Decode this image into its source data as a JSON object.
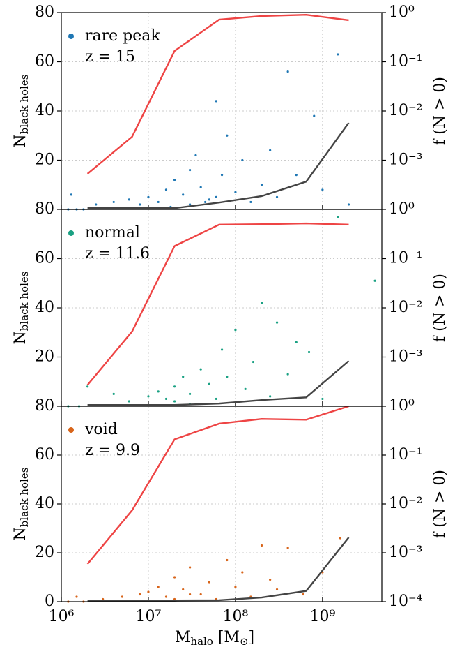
{
  "chart_data": [
    {
      "type": "scatter",
      "xscale": "log",
      "y2scale": "log",
      "grid": true,
      "legend": "upper left",
      "xlim": [
        1000000,
        4800000000
      ],
      "xticks": [
        1000000,
        10000000,
        100000000,
        1000000000
      ],
      "ylim": [
        0,
        80
      ],
      "yticks": [
        20,
        40,
        60,
        80
      ],
      "y2lim": [
        0.0001,
        1
      ],
      "y2ticks": [
        {
          "value": 0.001,
          "label": "10⁻³"
        },
        {
          "value": 0.01,
          "label": "10⁻²"
        },
        {
          "value": 0.1,
          "label": "10⁻¹"
        },
        {
          "value": 1,
          "label": "10⁰"
        }
      ],
      "ylabel": "N",
      "ylabel_sub": "black holes",
      "y2label": "f (N > 0)",
      "annotation": "z = 15",
      "series": [
        {
          "name": "rare peak",
          "color": "#1f77b4",
          "kind": "scatter",
          "x": [
            1200000,
            1500000,
            1800000,
            1300000,
            2500000,
            4000000,
            6000000,
            8000000,
            10000000,
            13000000,
            16000000,
            20000000,
            25000000,
            30000000,
            35000000,
            40000000,
            50000000,
            60000000,
            70000000,
            80000000,
            100000000,
            120000000,
            150000000,
            200000000,
            250000000,
            300000000,
            400000000,
            500000000,
            800000000,
            1000000000,
            1500000000,
            2000000000,
            30000000,
            18000000,
            45000000,
            60000000
          ],
          "values": [
            0,
            0,
            0,
            6,
            2,
            3,
            4,
            2,
            5,
            3,
            8,
            12,
            6,
            16,
            22,
            9,
            4,
            44,
            14,
            30,
            7,
            20,
            3,
            10,
            24,
            5,
            56,
            14,
            38,
            8,
            63,
            2,
            2,
            1,
            3,
            5
          ]
        },
        {
          "color": "#ee4444",
          "kind": "line",
          "axis": "y2",
          "x": [
            2000000,
            6500000,
            20000000,
            65000000,
            200000000,
            650000000,
            2000000000
          ],
          "values": [
            0.00053,
            0.003,
            0.166,
            0.72,
            0.85,
            0.9,
            0.7
          ]
        },
        {
          "color": "#444444",
          "kind": "line",
          "x": [
            2000000,
            6500000,
            20000000,
            65000000,
            200000000,
            650000000,
            2000000000
          ],
          "values": [
            0.5,
            0.5,
            0.5,
            2.8,
            5.4,
            11.3,
            35.2
          ]
        }
      ]
    },
    {
      "type": "scatter",
      "xscale": "log",
      "y2scale": "log",
      "grid": true,
      "legend": "upper left",
      "xlim": [
        1000000,
        4800000000
      ],
      "xticks": [
        1000000,
        10000000,
        100000000,
        1000000000
      ],
      "ylim": [
        0,
        80
      ],
      "yticks": [
        20,
        40,
        60,
        80
      ],
      "y2lim": [
        0.0001,
        1
      ],
      "y2ticks": [
        {
          "value": 0.001,
          "label": "10⁻³"
        },
        {
          "value": 0.01,
          "label": "10⁻²"
        },
        {
          "value": 0.1,
          "label": "10⁻¹"
        },
        {
          "value": 1,
          "label": "10⁰"
        }
      ],
      "ylabel": "N",
      "ylabel_sub": "black holes",
      "y2label": "f (N > 0)",
      "annotation": "z = 11.6",
      "series": [
        {
          "name": "normal",
          "color": "#1aa183",
          "kind": "scatter",
          "x": [
            1200000,
            1600000,
            2000000,
            4000000,
            6000000,
            10000000,
            13000000,
            16000000,
            20000000,
            25000000,
            30000000,
            40000000,
            50000000,
            60000000,
            70000000,
            80000000,
            100000000,
            130000000,
            160000000,
            200000000,
            250000000,
            300000000,
            400000000,
            500000000,
            700000000,
            1000000000,
            1500000000,
            4000000000,
            30000000,
            20000000
          ],
          "values": [
            0,
            0,
            8,
            5,
            2,
            4,
            6,
            3,
            8,
            12,
            5,
            15,
            9,
            3,
            23,
            12,
            31,
            7,
            18,
            42,
            4,
            34,
            13,
            26,
            22,
            3,
            77,
            51,
            1,
            2
          ]
        },
        {
          "color": "#ee4444",
          "kind": "line",
          "axis": "y2",
          "x": [
            2000000,
            6500000,
            20000000,
            65000000,
            200000000,
            650000000,
            2000000000
          ],
          "values": [
            0.00027,
            0.0033,
            0.18,
            0.49,
            0.5,
            0.52,
            0.49
          ]
        },
        {
          "color": "#444444",
          "kind": "line",
          "x": [
            2000000,
            6500000,
            20000000,
            65000000,
            200000000,
            650000000,
            2000000000
          ],
          "values": [
            0.5,
            0.5,
            0.5,
            1.1,
            2.5,
            3.6,
            18.4
          ]
        }
      ]
    },
    {
      "type": "scatter",
      "xscale": "log",
      "y2scale": "log",
      "grid": true,
      "legend": "upper left",
      "xlim": [
        1000000,
        4800000000
      ],
      "xticks": [
        {
          "value": 1000000,
          "label": "10⁶"
        },
        {
          "value": 10000000,
          "label": "10⁷"
        },
        {
          "value": 100000000,
          "label": "10⁸"
        },
        {
          "value": 1000000000,
          "label": "10⁹"
        }
      ],
      "ylim": [
        0,
        80
      ],
      "yticks": [
        0,
        20,
        40,
        60,
        80
      ],
      "y2lim": [
        0.0001,
        1
      ],
      "y2ticks": [
        {
          "value": 0.0001,
          "label": "10⁻⁴"
        },
        {
          "value": 0.001,
          "label": "10⁻³"
        },
        {
          "value": 0.01,
          "label": "10⁻²"
        },
        {
          "value": 0.1,
          "label": "10⁻¹"
        },
        {
          "value": 1,
          "label": "10⁰"
        }
      ],
      "ylabel": "N",
      "ylabel_sub": "black holes",
      "y2label": "f (N > 0)",
      "annotation": "z = 9.9",
      "xlabel": "M",
      "xlabel_sub": "halo",
      "xlabel_unit": " [M",
      "xlabel_unit_sub": "⊙",
      "xlabel_end": "]",
      "series": [
        {
          "name": "void",
          "color": "#d8651b",
          "kind": "scatter",
          "x": [
            1200000,
            1500000,
            1800000,
            3000000,
            5000000,
            8000000,
            10000000,
            13000000,
            16000000,
            20000000,
            25000000,
            30000000,
            40000000,
            50000000,
            60000000,
            80000000,
            100000000,
            120000000,
            150000000,
            200000000,
            250000000,
            300000000,
            400000000,
            600000000,
            1000000000,
            1600000000,
            20000000,
            30000000
          ],
          "values": [
            0,
            2,
            0,
            1,
            2,
            3,
            4,
            6,
            2,
            10,
            5,
            14,
            3,
            8,
            1,
            17,
            6,
            12,
            2,
            23,
            9,
            5,
            22,
            3,
            12,
            26,
            1,
            3
          ]
        },
        {
          "color": "#ee4444",
          "kind": "line",
          "axis": "y2",
          "x": [
            2000000,
            6500000,
            20000000,
            65000000,
            200000000,
            650000000,
            2000000000
          ],
          "values": [
            0.00059,
            0.0074,
            0.21,
            0.44,
            0.55,
            0.53,
            1.0
          ]
        },
        {
          "color": "#444444",
          "kind": "line",
          "x": [
            2000000,
            6500000,
            20000000,
            65000000,
            200000000,
            650000000,
            2000000000
          ],
          "values": [
            0.5,
            0.5,
            0.5,
            0.6,
            1.7,
            4.4,
            26.3
          ]
        }
      ]
    }
  ]
}
